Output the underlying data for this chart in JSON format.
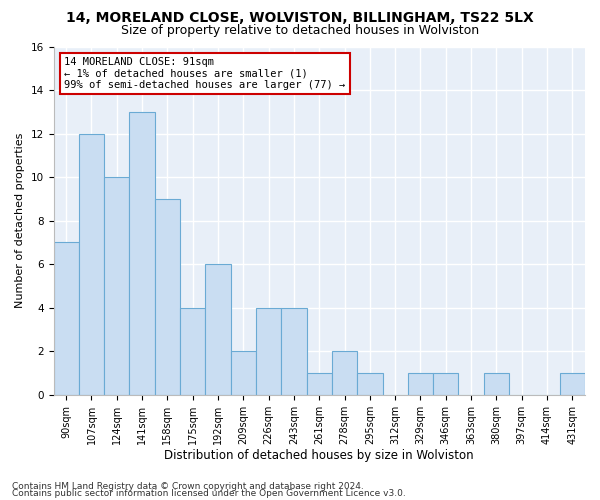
{
  "title": "14, MORELAND CLOSE, WOLVISTON, BILLINGHAM, TS22 5LX",
  "subtitle": "Size of property relative to detached houses in Wolviston",
  "xlabel": "Distribution of detached houses by size in Wolviston",
  "ylabel": "Number of detached properties",
  "categories": [
    "90sqm",
    "107sqm",
    "124sqm",
    "141sqm",
    "158sqm",
    "175sqm",
    "192sqm",
    "209sqm",
    "226sqm",
    "243sqm",
    "261sqm",
    "278sqm",
    "295sqm",
    "312sqm",
    "329sqm",
    "346sqm",
    "363sqm",
    "380sqm",
    "397sqm",
    "414sqm",
    "431sqm"
  ],
  "values": [
    7,
    12,
    10,
    13,
    9,
    4,
    6,
    2,
    4,
    4,
    1,
    2,
    1,
    0,
    1,
    1,
    0,
    1,
    0,
    0,
    1
  ],
  "bar_color": "#c9ddf2",
  "bar_edge_color": "#6aaad4",
  "annotation_text": "14 MORELAND CLOSE: 91sqm\n← 1% of detached houses are smaller (1)\n99% of semi-detached houses are larger (77) →",
  "annotation_box_color": "#ffffff",
  "annotation_box_edge": "#cc0000",
  "ylim": [
    0,
    16
  ],
  "yticks": [
    0,
    2,
    4,
    6,
    8,
    10,
    12,
    14,
    16
  ],
  "footer_line1": "Contains HM Land Registry data © Crown copyright and database right 2024.",
  "footer_line2": "Contains public sector information licensed under the Open Government Licence v3.0.",
  "fig_bg_color": "#ffffff",
  "plot_bg_color": "#e8eff8",
  "grid_color": "#ffffff",
  "title_fontsize": 10,
  "subtitle_fontsize": 9,
  "xlabel_fontsize": 8.5,
  "ylabel_fontsize": 8,
  "tick_fontsize": 7,
  "footer_fontsize": 6.5,
  "annot_fontsize": 7.5
}
